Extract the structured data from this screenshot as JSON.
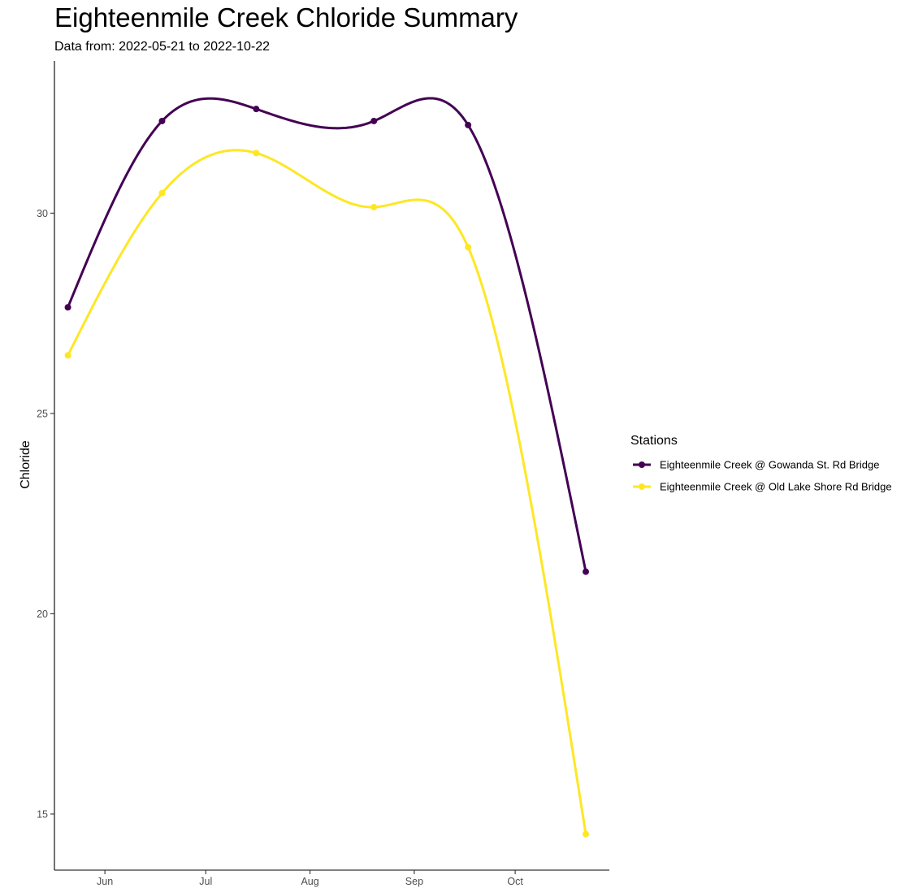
{
  "chart_data": {
    "type": "line",
    "title": "Eighteenmile Creek Chloride Summary",
    "subtitle": "Data from: 2022-05-21 to 2022-10-22",
    "xlabel": "",
    "ylabel": "Chloride",
    "x_axis_type": "date",
    "xlim": [
      "2022-05-17",
      "2022-10-29"
    ],
    "ylim": [
      13.6,
      33.8
    ],
    "x_ticks": [
      {
        "date": "2022-06-01",
        "label": "Jun"
      },
      {
        "date": "2022-07-01",
        "label": "Jul"
      },
      {
        "date": "2022-08-01",
        "label": "Aug"
      },
      {
        "date": "2022-09-01",
        "label": "Sep"
      },
      {
        "date": "2022-10-01",
        "label": "Oct"
      }
    ],
    "y_ticks": [
      15,
      20,
      25,
      30
    ],
    "grid": false,
    "smoothed": true,
    "legend": {
      "title": "Stations",
      "position": "right"
    },
    "x": [
      "2022-05-21",
      "2022-06-18",
      "2022-07-16",
      "2022-08-20",
      "2022-09-17",
      "2022-10-22"
    ],
    "series": [
      {
        "name": "Eighteenmile Creek @ Gowanda St. Rd Bridge",
        "color": "#440154",
        "values": [
          27.65,
          32.3,
          32.6,
          32.3,
          32.2,
          21.05
        ]
      },
      {
        "name": "Eighteenmile Creek @ Old Lake Shore Rd Bridge",
        "color": "#FDE725",
        "values": [
          26.45,
          30.5,
          31.5,
          30.15,
          29.15,
          14.5
        ]
      }
    ]
  }
}
